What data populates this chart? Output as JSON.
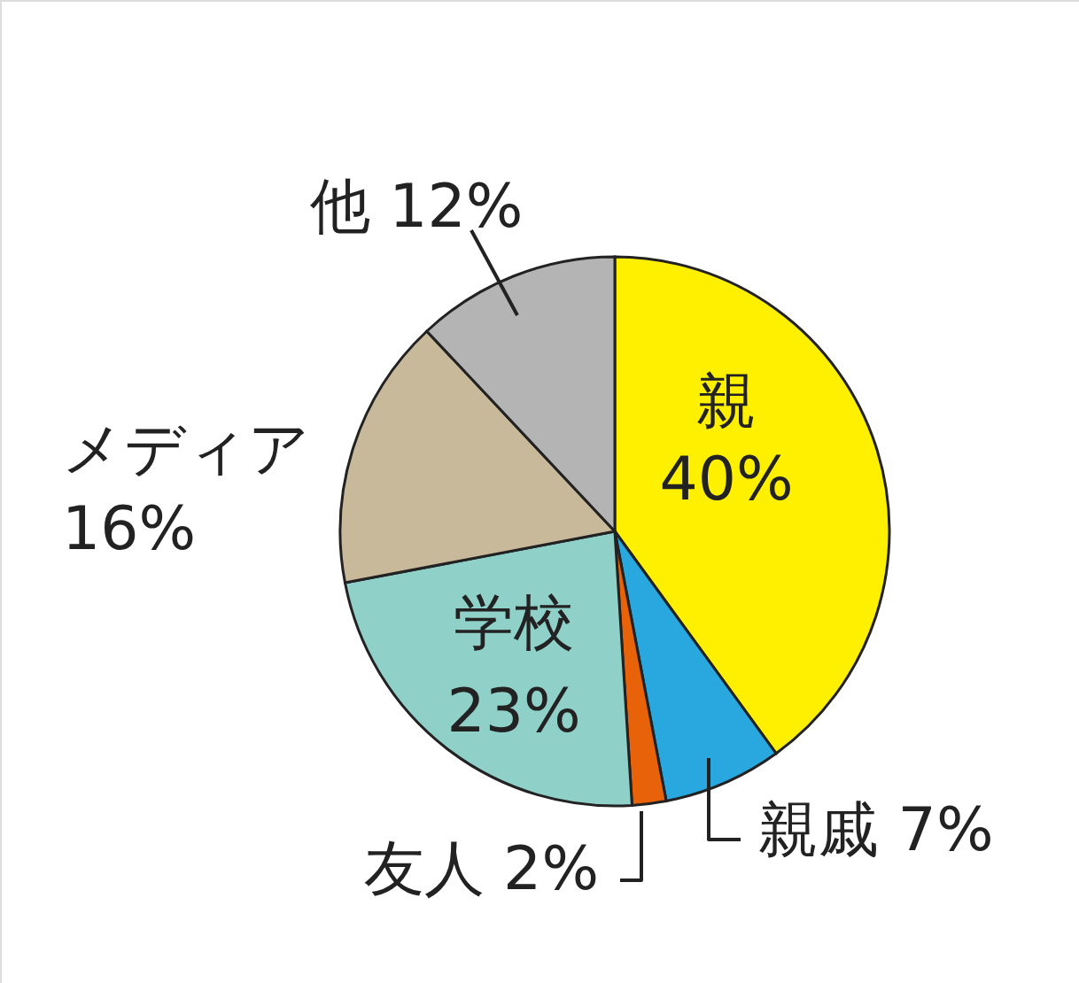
{
  "chart_data": {
    "type": "pie",
    "categories": [
      "親",
      "親戚",
      "友人",
      "学校",
      "メディア",
      "他"
    ],
    "values": [
      40,
      7,
      2,
      23,
      16,
      12
    ],
    "value_labels": [
      "40%",
      "7%",
      "2%",
      "23%",
      "16%",
      "12%"
    ],
    "colors": [
      "#fff000",
      "#29a8e0",
      "#e8620a",
      "#8fd0c8",
      "#c8b99a",
      "#b4b4b4"
    ]
  }
}
